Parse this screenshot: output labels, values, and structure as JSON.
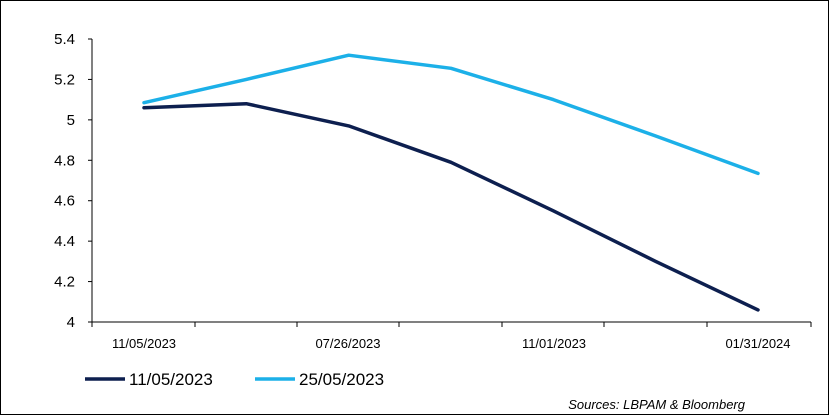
{
  "chart_data": {
    "type": "line",
    "title": "",
    "xlabel": "",
    "ylabel": "",
    "x": [
      "11/05/2023",
      "",
      "07/26/2023",
      "",
      "11/01/2023",
      "",
      "01/31/2024"
    ],
    "x_tick_labels": [
      "11/05/2023",
      "07/26/2023",
      "11/01/2023",
      "01/31/2024"
    ],
    "ylim": [
      4,
      5.4
    ],
    "y_ticks": [
      "4",
      "4.2",
      "4.4",
      "4.6",
      "4.8",
      "5",
      "5.2",
      "5.4"
    ],
    "grid": false,
    "legend_position": "bottom-left",
    "series": [
      {
        "name": "11/05/2023",
        "color": "#0d1f4f",
        "values": [
          5.06,
          5.08,
          4.97,
          4.79,
          4.55,
          4.3,
          4.06
        ]
      },
      {
        "name": "25/05/2023",
        "color": "#1cb0e8",
        "values": [
          5.085,
          5.2,
          5.32,
          5.255,
          5.1,
          4.92,
          4.735
        ]
      }
    ],
    "source": "Sources: LBPAM & Bloomberg"
  }
}
